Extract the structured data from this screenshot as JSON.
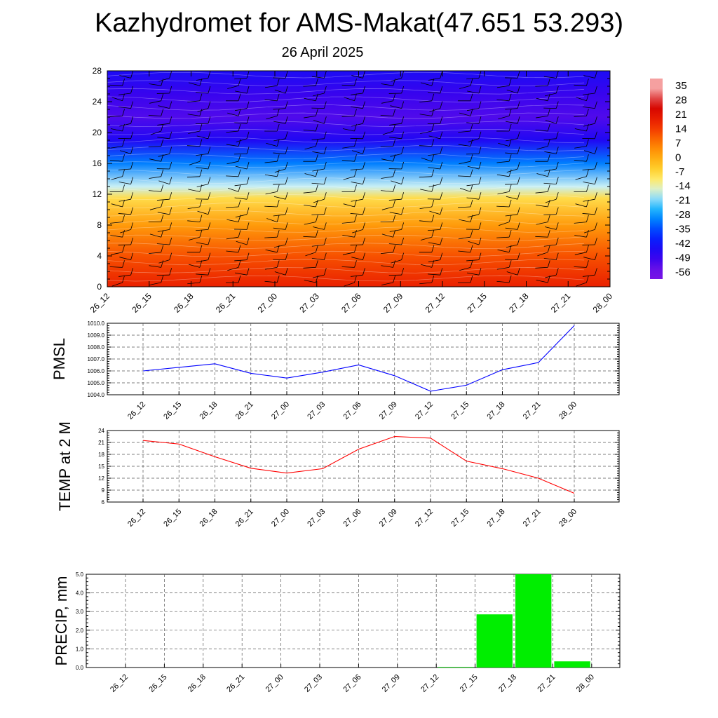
{
  "header": {
    "title": "Kazhydromet for AMS-Makat(47.651 53.293)",
    "subtitle": "26 April 2025"
  },
  "chart_data": [
    {
      "type": "heatmap",
      "title": "",
      "x_categories": [
        "26_12",
        "26_15",
        "26_18",
        "26_21",
        "27_00",
        "27_03",
        "27_06",
        "27_09",
        "27_12",
        "27_15",
        "27_18",
        "27_21",
        "28_00"
      ],
      "y_ticks": [
        0,
        4,
        8,
        12,
        16,
        20,
        24,
        28
      ],
      "ylim": [
        0,
        28
      ],
      "color_levels": [
        35,
        28,
        21,
        14,
        7,
        0,
        -7,
        -14,
        -21,
        -28,
        -35,
        -42,
        -49,
        -56
      ],
      "temperature_profile": [
        {
          "y": 0,
          "value": 20
        },
        {
          "y": 4,
          "value": 13
        },
        {
          "y": 8,
          "value": 3
        },
        {
          "y": 11.5,
          "value": -8
        },
        {
          "y": 13,
          "value": -18
        },
        {
          "y": 16,
          "value": -32
        },
        {
          "y": 19,
          "value": -48
        },
        {
          "y": 22,
          "value": -55
        },
        {
          "y": 25,
          "value": -52
        },
        {
          "y": 28,
          "value": -47
        }
      ],
      "overlay": "wind barbs and contour lines"
    },
    {
      "type": "line",
      "ylabel": "PMSL",
      "categories": [
        "26_12",
        "26_15",
        "26_18",
        "26_21",
        "27_00",
        "27_03",
        "27_06",
        "27_09",
        "27_12",
        "27_15",
        "27_18",
        "27_21",
        "28_00"
      ],
      "values": [
        1006.0,
        1006.3,
        1006.6,
        1005.8,
        1005.4,
        1005.9,
        1006.5,
        1005.6,
        1004.3,
        1004.8,
        1006.1,
        1006.7,
        1009.8
      ],
      "ylim": [
        1004.0,
        1010.0
      ],
      "y_ticks": [
        "1004.0",
        "1005.0",
        "1006.0",
        "1007.0",
        "1008.0",
        "1009.0",
        "1010.0"
      ],
      "color": "#0000ff",
      "grid": true
    },
    {
      "type": "line",
      "ylabel": "TEMP at 2 M",
      "categories": [
        "26_12",
        "26_15",
        "26_18",
        "26_21",
        "27_00",
        "27_03",
        "27_06",
        "27_09",
        "27_12",
        "27_15",
        "27_18",
        "27_21",
        "28_00"
      ],
      "values": [
        21.5,
        20.6,
        17.4,
        14.5,
        13.3,
        14.4,
        19.3,
        22.5,
        22.1,
        16.3,
        14.4,
        12.0,
        8.2
      ],
      "ylim": [
        6,
        24
      ],
      "y_ticks": [
        "6",
        "9",
        "12",
        "15",
        "18",
        "21",
        "24"
      ],
      "color": "#ff0000",
      "grid": true
    },
    {
      "type": "bar",
      "ylabel": "PRECIP, mm",
      "categories": [
        "26_12",
        "26_15",
        "26_18",
        "26_21",
        "27_00",
        "27_03",
        "27_06",
        "27_09",
        "27_12",
        "27_15",
        "27_18",
        "27_21",
        "28_00"
      ],
      "values": [
        0,
        0,
        0,
        0,
        0,
        0,
        0,
        0,
        0.03,
        2.85,
        5.0,
        0.33,
        0
      ],
      "ylim": [
        0,
        5
      ],
      "y_ticks": [
        "0.0",
        "1.0",
        "2.0",
        "3.0",
        "4.0",
        "5.0"
      ],
      "color": "#00ee00",
      "grid": true
    }
  ],
  "colors": {
    "pmsl_line": "#0000ff",
    "temp_line": "#ff0000",
    "precip_bar": "#00ee00"
  }
}
